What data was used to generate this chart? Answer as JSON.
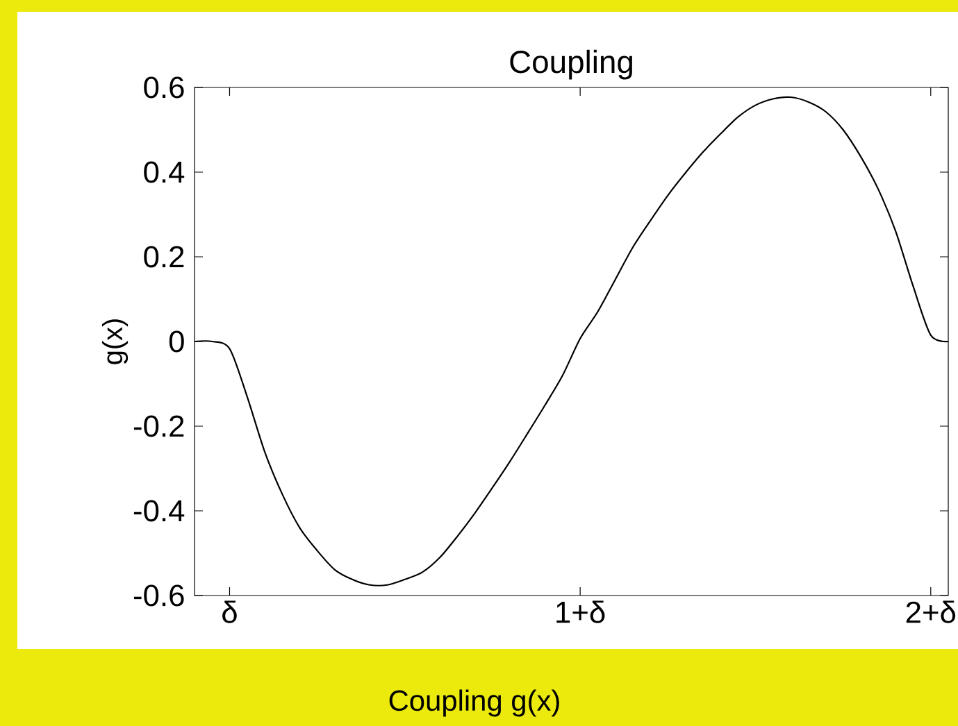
{
  "chart_data": {
    "type": "line",
    "title": "Coupling",
    "ylabel": "g(x)",
    "annotations": [
      "Coupling g(x)"
    ],
    "categories": [
      null,
      null,
      "δ",
      null,
      null,
      null,
      null,
      null,
      null,
      null,
      null,
      null,
      null,
      null,
      null,
      null,
      null,
      null,
      null,
      null,
      null,
      null,
      "1+δ",
      null,
      null,
      null,
      null,
      null,
      null,
      null,
      null,
      null,
      null,
      null,
      null,
      null,
      null,
      null,
      null,
      null,
      null,
      null,
      "2+δ",
      null
    ],
    "series": [
      {
        "color": "#000000",
        "values": [
          0,
          0,
          -0.017,
          -0.13,
          -0.26,
          -0.36,
          -0.44,
          -0.494,
          -0.539,
          -0.562,
          -0.575,
          -0.575,
          -0.562,
          -0.545,
          -0.51,
          -0.46,
          -0.405,
          -0.345,
          -0.283,
          -0.217,
          -0.15,
          -0.08,
          0.007,
          0.07,
          0.146,
          0.222,
          0.285,
          0.345,
          0.398,
          0.447,
          0.49,
          0.53,
          0.558,
          0.573,
          0.577,
          0.566,
          0.543,
          0.5,
          0.437,
          0.36,
          0.26,
          0.13,
          0.015,
          0
        ]
      }
    ],
    "ylim": [
      -0.6,
      0.6
    ],
    "yticks": [
      -0.6,
      -0.4,
      -0.2,
      0,
      0.2,
      0.4,
      0.6
    ],
    "marker": "none",
    "line_style": "solid"
  }
}
